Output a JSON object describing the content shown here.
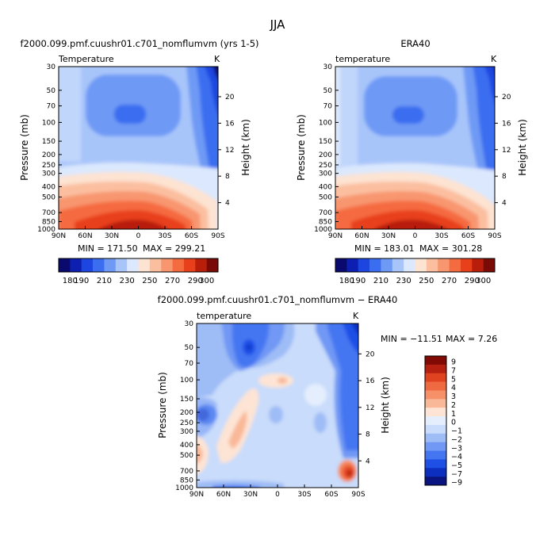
{
  "figure_title": "JJA",
  "colors": {
    "sequential": [
      "#0a0a6e",
      "#0d1fb0",
      "#1d46e0",
      "#3a6df0",
      "#6e9af5",
      "#a8c5fa",
      "#dbe8fd",
      "#fde3d2",
      "#fbbfa0",
      "#f89670",
      "#f56b40",
      "#e8401a",
      "#b81e0a",
      "#7a0a05"
    ],
    "diverging": [
      "#0a1480",
      "#0d2fbf",
      "#1f50e6",
      "#4576f2",
      "#7098f4",
      "#9ebcf6",
      "#c9dcfb",
      "#e4eefd",
      "#fde4d4",
      "#f9b898",
      "#f59068",
      "#ef6a40",
      "#e04320",
      "#b52010",
      "#820a05"
    ]
  },
  "chart_data": [
    {
      "type": "heatmap",
      "title": "f2000.099.pmf.cuushr01.c701_nomflumvm (yrs 1-5)",
      "field_label": "Temperature",
      "units": "K",
      "xlabel": "",
      "ylabel": "Pressure (mb)",
      "y2label": "Height (km)",
      "x_ticks": [
        "90N",
        "60N",
        "30N",
        "0",
        "30S",
        "60S",
        "90S"
      ],
      "y_ticks": [
        30,
        50,
        70,
        100,
        150,
        200,
        250,
        300,
        400,
        500,
        700,
        850,
        1000
      ],
      "y2_ticks": [
        4,
        8,
        12,
        16,
        20
      ],
      "y_scale": "log",
      "x_range": [
        90,
        -90
      ],
      "y_range": [
        30,
        1000
      ],
      "min_label": "MIN = 171.50",
      "max_label": "MAX = 299.21",
      "min": 171.5,
      "max": 299.21,
      "colorbar_ticks": [
        180,
        190,
        210,
        230,
        250,
        270,
        290,
        300
      ],
      "colorbar_labels": [
        "180",
        "190",
        "210",
        "230",
        "250",
        "270",
        "290",
        "300"
      ],
      "colorbar_orientation": "horizontal"
    },
    {
      "type": "heatmap",
      "title": "ERA40",
      "field_label": "temperature",
      "units": "K",
      "xlabel": "",
      "ylabel": "Pressure (mb)",
      "y2label": "Height (km)",
      "x_ticks": [
        "90N",
        "60N",
        "30N",
        "0",
        "30S",
        "60S",
        "90S"
      ],
      "y_ticks": [
        30,
        50,
        70,
        100,
        150,
        200,
        250,
        300,
        400,
        500,
        700,
        850,
        1000
      ],
      "y2_ticks": [
        4,
        8,
        12,
        16,
        20
      ],
      "y_scale": "log",
      "x_range": [
        90,
        -90
      ],
      "y_range": [
        30,
        1000
      ],
      "min_label": "MIN = 183.01",
      "max_label": "MAX = 301.28",
      "min": 183.01,
      "max": 301.28,
      "colorbar_ticks": [
        180,
        190,
        210,
        230,
        250,
        270,
        290,
        300
      ],
      "colorbar_labels": [
        "180",
        "190",
        "210",
        "230",
        "250",
        "270",
        "290",
        "300"
      ],
      "colorbar_orientation": "horizontal"
    },
    {
      "type": "heatmap",
      "title": "f2000.099.pmf.cuushr01.c701_nomflumvm − ERA40",
      "field_label": "temperature",
      "units": "K",
      "xlabel": "",
      "ylabel": "Pressure (mb)",
      "y2label": "Height (km)",
      "x_ticks": [
        "90N",
        "60N",
        "30N",
        "0",
        "30S",
        "60S",
        "90S"
      ],
      "y_ticks": [
        30,
        50,
        70,
        100,
        150,
        200,
        250,
        300,
        400,
        500,
        700,
        850,
        1000
      ],
      "y2_ticks": [
        4,
        8,
        12,
        16,
        20
      ],
      "y_scale": "log",
      "x_range": [
        90,
        -90
      ],
      "y_range": [
        30,
        1000
      ],
      "min_label": "MIN = −11.51",
      "max_label": "MAX =    7.26",
      "min": -11.51,
      "max": 7.26,
      "colorbar_ticks": [
        9,
        7,
        5,
        4,
        3,
        2,
        1,
        0,
        -1,
        -2,
        -3,
        -4,
        -5,
        -7,
        -9
      ],
      "colorbar_labels": [
        "9",
        "7",
        "5",
        "4",
        "3",
        "2",
        "1",
        "0",
        "−1",
        "−2",
        "−3",
        "−4",
        "−5",
        "−7",
        "−9"
      ],
      "colorbar_orientation": "vertical"
    }
  ]
}
